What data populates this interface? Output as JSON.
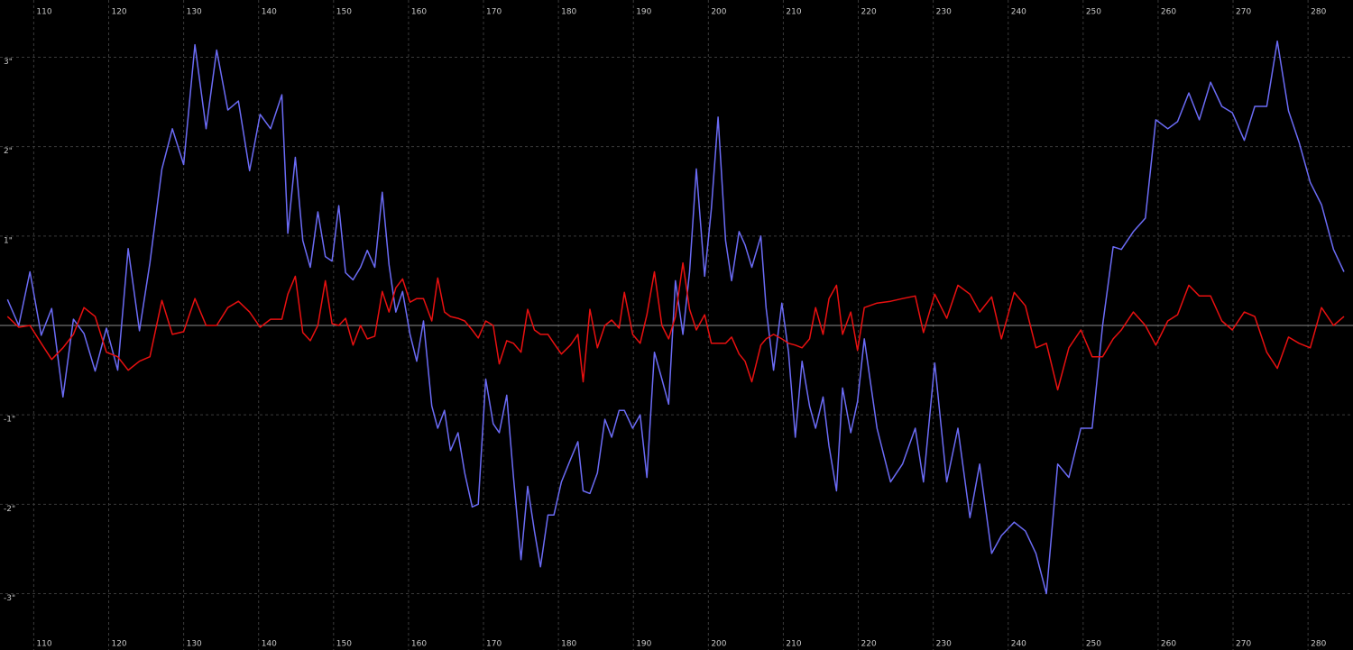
{
  "chart_data": {
    "type": "line",
    "x": [
      106.5,
      108.0,
      109.5,
      111.0,
      112.4,
      113.9,
      115.3,
      116.7,
      118.2,
      119.7,
      121.2,
      122.6,
      124.1,
      125.5,
      127.1,
      128.5,
      130.0,
      131.5,
      133.0,
      134.4,
      135.9,
      137.3,
      138.8,
      140.2,
      141.6,
      143.1,
      143.9,
      144.9,
      145.9,
      146.9,
      147.9,
      148.9,
      149.8,
      150.7,
      151.6,
      152.6,
      153.6,
      154.5,
      155.5,
      156.5,
      157.4,
      158.3,
      159.2,
      160.2,
      161.1,
      162.0,
      163.1,
      163.9,
      164.8,
      165.6,
      166.6,
      167.5,
      168.5,
      169.3,
      170.3,
      171.3,
      172.1,
      173.1,
      174.0,
      175.0,
      175.9,
      176.8,
      177.6,
      178.6,
      179.4,
      180.4,
      181.6,
      182.6,
      183.3,
      184.2,
      185.2,
      186.2,
      187.1,
      188.1,
      188.8,
      189.9,
      190.9,
      191.8,
      192.8,
      193.8,
      194.7,
      195.6,
      196.6,
      197.5,
      198.4,
      199.5,
      200.4,
      201.3,
      202.3,
      203.1,
      204.1,
      204.9,
      205.8,
      207.0,
      207.7,
      208.7,
      209.8,
      210.7,
      211.6,
      212.5,
      213.5,
      214.3,
      215.3,
      216.1,
      217.1,
      217.9,
      219.0,
      219.9,
      220.8,
      222.5,
      224.3,
      225.9,
      227.6,
      228.7,
      230.2,
      231.8,
      233.3,
      234.9,
      236.2,
      237.8,
      239.1,
      240.8,
      242.3,
      243.7,
      245.1,
      246.6,
      248.1,
      249.7,
      251.2,
      252.6,
      254.0,
      255.1,
      256.7,
      258.3,
      259.7,
      261.3,
      262.6,
      264.1,
      265.5,
      267.0,
      268.5,
      269.9,
      271.5,
      272.9,
      274.5,
      275.9,
      277.4,
      278.8,
      280.3,
      281.8,
      283.4,
      284.8
    ],
    "series": [
      {
        "color": "#6b6bf5",
        "values": [
          0.29,
          0.0,
          0.6,
          -0.11,
          0.19,
          -0.8,
          0.07,
          -0.09,
          -0.51,
          -0.03,
          -0.5,
          0.86,
          -0.06,
          0.7,
          1.75,
          2.2,
          1.8,
          3.14,
          2.2,
          3.08,
          2.41,
          2.51,
          1.73,
          2.36,
          2.2,
          2.58,
          1.03,
          1.88,
          0.95,
          0.65,
          1.27,
          0.77,
          0.72,
          1.34,
          0.59,
          0.51,
          0.65,
          0.84,
          0.65,
          1.49,
          0.68,
          0.15,
          0.38,
          -0.1,
          -0.4,
          0.05,
          -0.9,
          -1.15,
          -0.95,
          -1.4,
          -1.2,
          -1.65,
          -2.03,
          -2.0,
          -0.6,
          -1.1,
          -1.2,
          -0.78,
          -1.7,
          -2.62,
          -1.8,
          -2.3,
          -2.7,
          -2.12,
          -2.12,
          -1.75,
          -1.5,
          -1.3,
          -1.85,
          -1.88,
          -1.65,
          -1.05,
          -1.25,
          -0.95,
          -0.95,
          -1.15,
          -1.0,
          -1.7,
          -0.3,
          -0.6,
          -0.88,
          0.5,
          -0.1,
          0.6,
          1.75,
          0.55,
          1.3,
          2.33,
          0.95,
          0.5,
          1.05,
          0.9,
          0.65,
          1.0,
          0.2,
          -0.5,
          0.25,
          -0.3,
          -1.25,
          -0.4,
          -0.9,
          -1.15,
          -0.8,
          -1.35,
          -1.85,
          -0.7,
          -1.2,
          -0.85,
          -0.15,
          -1.15,
          -1.75,
          -1.55,
          -1.15,
          -1.75,
          -0.42,
          -1.75,
          -1.15,
          -2.15,
          -1.55,
          -2.55,
          -2.35,
          -2.2,
          -2.3,
          -2.55,
          -3.0,
          -1.55,
          -1.7,
          -1.15,
          -1.15,
          0.0,
          0.88,
          0.85,
          1.05,
          1.2,
          2.3,
          2.2,
          2.28,
          2.6,
          2.3,
          2.72,
          2.45,
          2.38,
          2.07,
          2.45,
          2.45,
          3.18,
          2.4,
          2.05,
          1.6,
          1.35,
          0.85,
          0.6
        ]
      },
      {
        "color": "#e81010",
        "values": [
          0.1,
          -0.02,
          0.0,
          -0.2,
          -0.38,
          -0.25,
          -0.1,
          0.2,
          0.1,
          -0.3,
          -0.35,
          -0.5,
          -0.4,
          -0.35,
          0.28,
          -0.1,
          -0.07,
          0.3,
          0.0,
          0.0,
          0.2,
          0.27,
          0.15,
          -0.02,
          0.07,
          0.07,
          0.35,
          0.55,
          -0.08,
          -0.17,
          0.0,
          0.5,
          0.02,
          0.0,
          0.08,
          -0.22,
          0.0,
          -0.15,
          -0.12,
          0.38,
          0.15,
          0.42,
          0.52,
          0.26,
          0.3,
          0.3,
          0.05,
          0.53,
          0.15,
          0.1,
          0.08,
          0.05,
          -0.05,
          -0.14,
          0.05,
          0.0,
          -0.43,
          -0.17,
          -0.2,
          -0.3,
          0.18,
          -0.05,
          -0.1,
          -0.1,
          -0.2,
          -0.32,
          -0.22,
          -0.1,
          -0.63,
          0.18,
          -0.25,
          0.0,
          0.06,
          -0.03,
          0.37,
          -0.1,
          -0.2,
          0.12,
          0.6,
          0.0,
          -0.15,
          0.1,
          0.7,
          0.18,
          -0.05,
          0.12,
          -0.2,
          -0.2,
          -0.2,
          -0.13,
          -0.32,
          -0.4,
          -0.63,
          -0.22,
          -0.15,
          -0.1,
          -0.15,
          -0.2,
          -0.22,
          -0.25,
          -0.15,
          0.2,
          -0.1,
          0.3,
          0.45,
          -0.1,
          0.15,
          -0.28,
          0.2,
          0.25,
          0.27,
          0.3,
          0.33,
          -0.08,
          0.35,
          0.08,
          0.45,
          0.35,
          0.15,
          0.32,
          -0.15,
          0.37,
          0.22,
          -0.25,
          -0.2,
          -0.72,
          -0.25,
          -0.05,
          -0.35,
          -0.35,
          -0.15,
          -0.05,
          0.15,
          0.0,
          -0.22,
          0.05,
          0.12,
          0.45,
          0.33,
          0.33,
          0.05,
          -0.05,
          0.15,
          0.1,
          -0.3,
          -0.48,
          -0.13,
          -0.2,
          -0.25,
          0.2,
          0.0,
          0.1
        ]
      }
    ],
    "xlim": [
      105.5,
      286.0
    ],
    "ylim": [
      -3.63,
      3.64
    ],
    "xticks": [
      110,
      120,
      130,
      140,
      150,
      160,
      170,
      180,
      190,
      200,
      210,
      220,
      230,
      240,
      250,
      260,
      270,
      280
    ],
    "yticks": [
      {
        "value": 3,
        "label": "3\""
      },
      {
        "value": 2,
        "label": "2\""
      },
      {
        "value": 1,
        "label": "1\""
      },
      {
        "value": -1,
        "label": "-1\""
      },
      {
        "value": -2,
        "label": "-2\""
      },
      {
        "value": -3,
        "label": "-3\""
      }
    ],
    "grid": true
  }
}
